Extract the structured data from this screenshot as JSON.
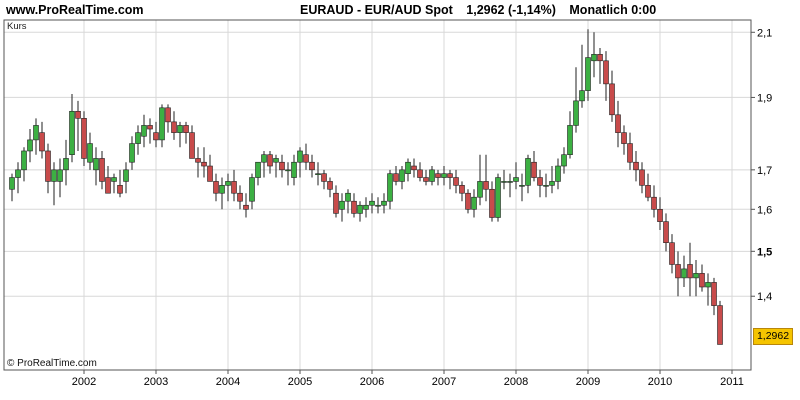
{
  "header": {
    "site": "www.ProRealTime.com",
    "symbol": "EURAUD - EUR/AUD Spot",
    "price_change": "1,2962 (-1,14%)",
    "period": "Monatlich 0:00"
  },
  "footer": {
    "copyright": "© ProRealTime.com"
  },
  "colors": {
    "up": "#3cb043",
    "down": "#c84b4b",
    "grid": "#d8d8d8",
    "badge": "#f5c400"
  },
  "chart_data": {
    "type": "candlestick",
    "ylabel": "Kurs",
    "ylim": [
      1.25,
      2.14
    ],
    "yscale": "log",
    "grid": true,
    "x_ticks": [
      "2002",
      "2003",
      "2004",
      "2005",
      "2006",
      "2007",
      "2008",
      "2009",
      "2010",
      "2011"
    ],
    "y_ticks": [
      {
        "value": 2.1,
        "label": "2,1"
      },
      {
        "value": 1.9,
        "label": "1,9"
      },
      {
        "value": 1.7,
        "label": "1,7"
      },
      {
        "value": 1.6,
        "label": "1,6"
      },
      {
        "value": 1.5,
        "label": "1,5",
        "bold": true
      },
      {
        "value": 1.4,
        "label": "1,4"
      }
    ],
    "last_value_label": "1,2962",
    "series": [
      {
        "period_start": "2001-01",
        "ohlc": [
          [
            1.65,
            1.69,
            1.62,
            1.68
          ],
          [
            1.68,
            1.72,
            1.64,
            1.7
          ],
          [
            1.7,
            1.76,
            1.67,
            1.75
          ],
          [
            1.75,
            1.81,
            1.72,
            1.78
          ],
          [
            1.78,
            1.84,
            1.74,
            1.82
          ],
          [
            1.8,
            1.83,
            1.73,
            1.75
          ],
          [
            1.75,
            1.77,
            1.64,
            1.67
          ],
          [
            1.67,
            1.72,
            1.61,
            1.7
          ],
          [
            1.67,
            1.73,
            1.63,
            1.7
          ],
          [
            1.7,
            1.78,
            1.66,
            1.73
          ],
          [
            1.74,
            1.91,
            1.72,
            1.86
          ],
          [
            1.86,
            1.89,
            1.75,
            1.84
          ],
          [
            1.84,
            1.86,
            1.71,
            1.73
          ],
          [
            1.72,
            1.8,
            1.7,
            1.77
          ],
          [
            1.7,
            1.76,
            1.66,
            1.73
          ],
          [
            1.73,
            1.75,
            1.65,
            1.67
          ],
          [
            1.68,
            1.71,
            1.64,
            1.64
          ],
          [
            1.67,
            1.69,
            1.64,
            1.68
          ],
          [
            1.66,
            1.7,
            1.63,
            1.64
          ],
          [
            1.67,
            1.72,
            1.64,
            1.7
          ],
          [
            1.72,
            1.79,
            1.7,
            1.77
          ],
          [
            1.77,
            1.82,
            1.74,
            1.8
          ],
          [
            1.79,
            1.85,
            1.76,
            1.82
          ],
          [
            1.82,
            1.84,
            1.77,
            1.81
          ],
          [
            1.8,
            1.83,
            1.76,
            1.78
          ],
          [
            1.78,
            1.88,
            1.76,
            1.87
          ],
          [
            1.87,
            1.88,
            1.8,
            1.83
          ],
          [
            1.83,
            1.86,
            1.78,
            1.8
          ],
          [
            1.8,
            1.83,
            1.76,
            1.82
          ],
          [
            1.82,
            1.83,
            1.77,
            1.8
          ],
          [
            1.8,
            1.82,
            1.73,
            1.73
          ],
          [
            1.73,
            1.76,
            1.68,
            1.72
          ],
          [
            1.72,
            1.76,
            1.68,
            1.71
          ],
          [
            1.71,
            1.74,
            1.67,
            1.67
          ],
          [
            1.67,
            1.69,
            1.62,
            1.64
          ],
          [
            1.64,
            1.68,
            1.6,
            1.66
          ],
          [
            1.66,
            1.69,
            1.62,
            1.67
          ],
          [
            1.67,
            1.7,
            1.62,
            1.64
          ],
          [
            1.64,
            1.66,
            1.6,
            1.62
          ],
          [
            1.61,
            1.64,
            1.58,
            1.6
          ],
          [
            1.62,
            1.69,
            1.6,
            1.68
          ],
          [
            1.68,
            1.72,
            1.66,
            1.72
          ],
          [
            1.72,
            1.75,
            1.68,
            1.74
          ],
          [
            1.74,
            1.75,
            1.69,
            1.71
          ],
          [
            1.72,
            1.74,
            1.68,
            1.73
          ],
          [
            1.72,
            1.74,
            1.68,
            1.7
          ],
          [
            1.7,
            1.72,
            1.66,
            1.7
          ],
          [
            1.68,
            1.74,
            1.66,
            1.72
          ],
          [
            1.72,
            1.76,
            1.68,
            1.75
          ],
          [
            1.74,
            1.77,
            1.7,
            1.72
          ],
          [
            1.72,
            1.74,
            1.68,
            1.7
          ],
          [
            1.69,
            1.72,
            1.66,
            1.69
          ],
          [
            1.69,
            1.7,
            1.65,
            1.67
          ],
          [
            1.67,
            1.68,
            1.63,
            1.65
          ],
          [
            1.64,
            1.66,
            1.58,
            1.59
          ],
          [
            1.6,
            1.64,
            1.57,
            1.62
          ],
          [
            1.62,
            1.65,
            1.59,
            1.64
          ],
          [
            1.62,
            1.64,
            1.58,
            1.59
          ],
          [
            1.59,
            1.62,
            1.57,
            1.61
          ],
          [
            1.6,
            1.63,
            1.58,
            1.61
          ],
          [
            1.61,
            1.64,
            1.59,
            1.62
          ],
          [
            1.61,
            1.63,
            1.59,
            1.61
          ],
          [
            1.61,
            1.64,
            1.59,
            1.62
          ],
          [
            1.62,
            1.7,
            1.6,
            1.69
          ],
          [
            1.69,
            1.71,
            1.66,
            1.67
          ],
          [
            1.67,
            1.71,
            1.65,
            1.7
          ],
          [
            1.69,
            1.73,
            1.67,
            1.72
          ],
          [
            1.71,
            1.73,
            1.68,
            1.7
          ],
          [
            1.7,
            1.72,
            1.67,
            1.68
          ],
          [
            1.68,
            1.7,
            1.66,
            1.67
          ],
          [
            1.67,
            1.71,
            1.66,
            1.7
          ],
          [
            1.69,
            1.7,
            1.66,
            1.68
          ],
          [
            1.68,
            1.71,
            1.66,
            1.69
          ],
          [
            1.69,
            1.7,
            1.65,
            1.68
          ],
          [
            1.68,
            1.7,
            1.64,
            1.66
          ],
          [
            1.66,
            1.67,
            1.62,
            1.64
          ],
          [
            1.64,
            1.65,
            1.59,
            1.6
          ],
          [
            1.6,
            1.65,
            1.58,
            1.63
          ],
          [
            1.63,
            1.74,
            1.61,
            1.67
          ],
          [
            1.67,
            1.74,
            1.62,
            1.65
          ],
          [
            1.65,
            1.67,
            1.57,
            1.58
          ],
          [
            1.58,
            1.69,
            1.57,
            1.68
          ],
          [
            1.67,
            1.7,
            1.65,
            1.67
          ],
          [
            1.67,
            1.69,
            1.63,
            1.67
          ],
          [
            1.67,
            1.72,
            1.65,
            1.68
          ],
          [
            1.66,
            1.69,
            1.62,
            1.66
          ],
          [
            1.66,
            1.74,
            1.64,
            1.73
          ],
          [
            1.72,
            1.75,
            1.67,
            1.68
          ],
          [
            1.68,
            1.7,
            1.63,
            1.66
          ],
          [
            1.66,
            1.69,
            1.63,
            1.66
          ],
          [
            1.66,
            1.71,
            1.64,
            1.67
          ],
          [
            1.67,
            1.73,
            1.65,
            1.71
          ],
          [
            1.71,
            1.76,
            1.69,
            1.74
          ],
          [
            1.74,
            1.86,
            1.73,
            1.82
          ],
          [
            1.82,
            1.99,
            1.8,
            1.89
          ],
          [
            1.89,
            2.06,
            1.87,
            1.92
          ],
          [
            1.92,
            2.11,
            1.89,
            2.02
          ],
          [
            2.01,
            2.1,
            1.96,
            2.03
          ],
          [
            2.03,
            2.05,
            1.94,
            2.01
          ],
          [
            2.01,
            2.04,
            1.89,
            1.94
          ],
          [
            1.94,
            1.98,
            1.83,
            1.85
          ],
          [
            1.85,
            1.89,
            1.76,
            1.8
          ],
          [
            1.8,
            1.82,
            1.74,
            1.77
          ],
          [
            1.77,
            1.8,
            1.7,
            1.72
          ],
          [
            1.72,
            1.75,
            1.67,
            1.7
          ],
          [
            1.7,
            1.72,
            1.64,
            1.66
          ],
          [
            1.66,
            1.69,
            1.62,
            1.63
          ],
          [
            1.63,
            1.66,
            1.58,
            1.6
          ],
          [
            1.6,
            1.63,
            1.55,
            1.57
          ],
          [
            1.57,
            1.59,
            1.5,
            1.52
          ],
          [
            1.52,
            1.54,
            1.45,
            1.47
          ],
          [
            1.47,
            1.5,
            1.4,
            1.44
          ],
          [
            1.44,
            1.49,
            1.42,
            1.46
          ],
          [
            1.47,
            1.52,
            1.4,
            1.44
          ],
          [
            1.44,
            1.48,
            1.4,
            1.45
          ],
          [
            1.45,
            1.47,
            1.41,
            1.42
          ],
          [
            1.42,
            1.45,
            1.38,
            1.43
          ],
          [
            1.43,
            1.44,
            1.36,
            1.38
          ],
          [
            1.38,
            1.39,
            1.3,
            1.3
          ]
        ]
      }
    ]
  }
}
